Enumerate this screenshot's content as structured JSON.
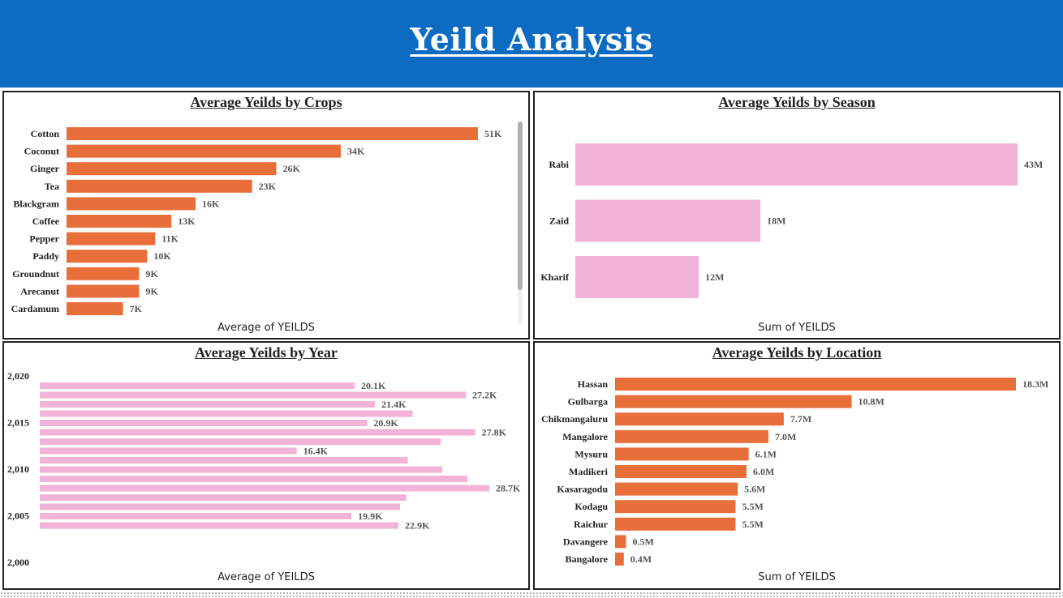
{
  "page": {
    "title": "Yeild Analysis"
  },
  "colors": {
    "header": "#0d6bc2",
    "orange": "#e86e3a",
    "pink": "#f2b3d9"
  },
  "chart_data": [
    {
      "id": "crops",
      "type": "bar",
      "orientation": "horizontal",
      "title": "Average Yeilds by Crops",
      "xlabel": "Average of YEILDS",
      "color": "#e86e3a",
      "categories": [
        "Cotton",
        "Coconut",
        "Ginger",
        "Tea",
        "Blackgram",
        "Coffee",
        "Pepper",
        "Paddy",
        "Groundnut",
        "Arecanut",
        "Cardamum"
      ],
      "values": [
        51000,
        34000,
        26000,
        23000,
        16000,
        13000,
        11000,
        10000,
        9000,
        9000,
        7000
      ],
      "data_labels": [
        "51K",
        "34K",
        "26K",
        "23K",
        "16K",
        "13K",
        "11K",
        "10K",
        "9K",
        "9K",
        "7K"
      ],
      "xlim": [
        0,
        51000
      ]
    },
    {
      "id": "season",
      "type": "bar",
      "orientation": "horizontal",
      "title": "Average Yeilds by Season",
      "xlabel": "Sum of YEILDS",
      "color": "#f2b3d9",
      "categories": [
        "Rabi",
        "Zaid",
        "Kharif"
      ],
      "values": [
        43000000,
        18000000,
        12000000
      ],
      "data_labels": [
        "43M",
        "18M",
        "12M"
      ],
      "xlim": [
        0,
        43000000
      ]
    },
    {
      "id": "year",
      "type": "bar",
      "orientation": "horizontal",
      "title": "Average Yeilds by Year",
      "xlabel": "Average of YEILDS",
      "color": "#f2b3d9",
      "y_ticks": [
        "2,020",
        "2,015",
        "2,010",
        "2,005",
        "2,000"
      ],
      "ylim": [
        2000,
        2020
      ],
      "xlim": [
        0,
        28700
      ],
      "series": [
        {
          "x": [
            2020,
            2019,
            2018,
            2017,
            2016,
            2015,
            2014,
            2013,
            2012,
            2011,
            2010,
            2009,
            2008,
            2007,
            2006,
            2005,
            2004
          ],
          "values": [
            20100,
            27200,
            21400,
            23800,
            20900,
            27800,
            25600,
            16400,
            23500,
            25700,
            27300,
            28700,
            23400,
            23000,
            19900,
            22900,
            null
          ],
          "data_labels": [
            "20.1K",
            "27.2K",
            "21.4K",
            "",
            "20.9K",
            "27.8K",
            "",
            "16.4K",
            "",
            "",
            "",
            "28.7K",
            "",
            "",
            "19.9K",
            "22.9K",
            ""
          ]
        }
      ]
    },
    {
      "id": "location",
      "type": "bar",
      "orientation": "horizontal",
      "title": "Average Yeilds by Location",
      "xlabel": "Sum of YEILDS",
      "color": "#e86e3a",
      "categories": [
        "Hassan",
        "Gulbarga",
        "Chikmangaluru",
        "Mangalore",
        "Mysuru",
        "Madikeri",
        "Kasaragodu",
        "Kodagu",
        "Raichur",
        "Davangere",
        "Bangalore"
      ],
      "values": [
        18300000,
        10800000,
        7700000,
        7000000,
        6100000,
        6000000,
        5600000,
        5500000,
        5500000,
        500000,
        400000
      ],
      "data_labels": [
        "18.3M",
        "10.8M",
        "7.7M",
        "7.0M",
        "6.1M",
        "6.0M",
        "5.6M",
        "5.5M",
        "5.5M",
        "0.5M",
        "0.4M"
      ],
      "xlim": [
        0,
        18300000
      ]
    }
  ]
}
